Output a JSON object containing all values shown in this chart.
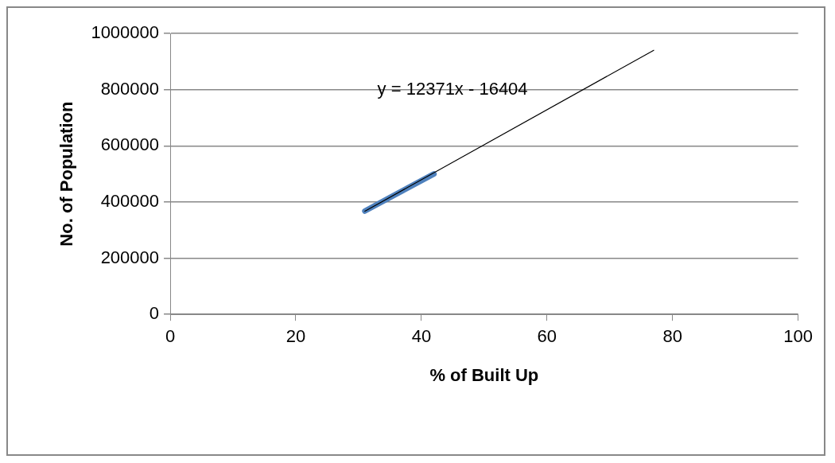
{
  "chart_data": {
    "type": "line",
    "xlabel": "% of Built Up",
    "ylabel": "No. of Population",
    "series": [
      {
        "color": "#4f81bd",
        "x": [
          31,
          36.5,
          42
        ],
        "values": [
          368000,
          434000,
          500000
        ]
      },
      {
        "color": "#000000",
        "x": [
          31,
          77
        ],
        "values": [
          367000,
          940000
        ]
      }
    ],
    "xlim": [
      0,
      100
    ],
    "xticks": [
      0,
      20,
      40,
      60,
      80,
      100
    ],
    "ylim": [
      0,
      1000000
    ],
    "yticks": [
      0,
      200000,
      400000,
      600000,
      800000,
      1000000
    ],
    "grid": "y",
    "legend": false,
    "marker": "none",
    "line_style": "solid",
    "annotations": [
      "y = 12371x - 16404"
    ]
  }
}
